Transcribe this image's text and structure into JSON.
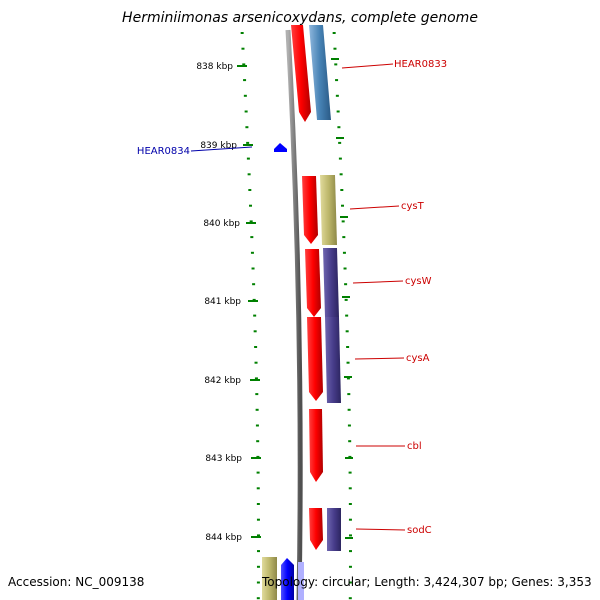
{
  "title": "Herminiimonas arsenicoxydans, complete genome",
  "accession_text": "Accession: NC_009138",
  "summary_text": "Topology: circular; Length: 3,424,307 bp; Genes: 3,353",
  "colors": {
    "backbone": "#808080",
    "tick": "#008000",
    "label_red": "#cc0000",
    "label_blue": "#0000aa",
    "red_gene": "#ff0000",
    "blue_gene": "#4682b4",
    "olive_gene": "#bdb76b",
    "purple_gene": "#483d8b",
    "bright_blue_gene": "#0000ff"
  },
  "scale": {
    "tick_labels": [
      "838 kbp",
      "839 kbp",
      "840 kbp",
      "841 kbp",
      "842 kbp",
      "843 kbp",
      "844 kbp"
    ]
  },
  "gene_labels": [
    {
      "name": "HEAR0833",
      "color": "red"
    },
    {
      "name": "HEAR0834",
      "color": "blue"
    },
    {
      "name": "cysT",
      "color": "red"
    },
    {
      "name": "cysW",
      "color": "red"
    },
    {
      "name": "cysA",
      "color": "red"
    },
    {
      "name": "cbl",
      "color": "red"
    },
    {
      "name": "sodC",
      "color": "red"
    }
  ]
}
